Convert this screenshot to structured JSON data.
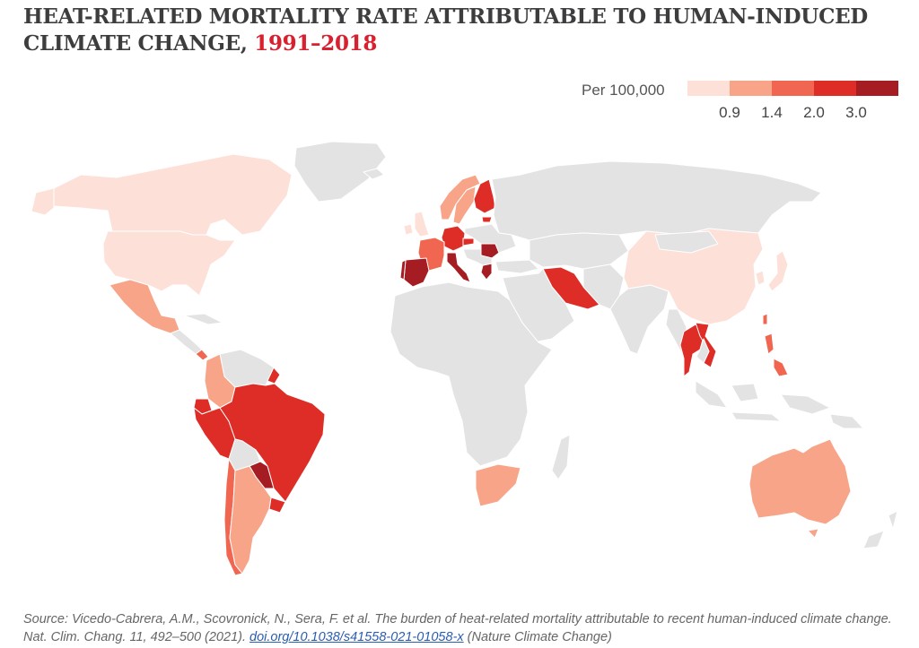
{
  "title": {
    "main": "HEAT-RELATED MORTALITY RATE ATTRIBUTABLE TO HUMAN-INDUCED CLIMATE CHANGE, ",
    "years": "1991–2018"
  },
  "legend": {
    "label": "Per 100,000",
    "colors": [
      "#fde0d7",
      "#f8a488",
      "#f06650",
      "#de2d26",
      "#a51c22"
    ],
    "ticks": [
      "0.9",
      "1.4",
      "2.0",
      "3.0"
    ]
  },
  "colors": {
    "no_data": "#e3e3e3",
    "title_accent": "#d9202f"
  },
  "chart_data": {
    "type": "choropleth",
    "title": "HEAT-RELATED MORTALITY RATE ATTRIBUTABLE TO HUMAN-INDUCED CLIMATE CHANGE, 1991–2018",
    "unit": "Per 100,000",
    "bins": [
      "<0.9",
      "0.9–1.4",
      "1.4–2.0",
      "2.0–3.0",
      ">3.0"
    ],
    "regions": [
      {
        "name": "Canada",
        "bin": 0
      },
      {
        "name": "United States",
        "bin": 0
      },
      {
        "name": "Mexico",
        "bin": 1
      },
      {
        "name": "Guatemala",
        "bin": 1
      },
      {
        "name": "Panama",
        "bin": 2
      },
      {
        "name": "Colombia",
        "bin": 1
      },
      {
        "name": "Ecuador",
        "bin": 3
      },
      {
        "name": "Peru",
        "bin": 3
      },
      {
        "name": "Brazil",
        "bin": 3
      },
      {
        "name": "Paraguay",
        "bin": 4
      },
      {
        "name": "Uruguay",
        "bin": 3
      },
      {
        "name": "Chile",
        "bin": 2
      },
      {
        "name": "Argentina",
        "bin": 1
      },
      {
        "name": "French Guiana",
        "bin": 3
      },
      {
        "name": "United Kingdom",
        "bin": 0
      },
      {
        "name": "Ireland",
        "bin": 0
      },
      {
        "name": "Norway",
        "bin": 1
      },
      {
        "name": "Sweden",
        "bin": 1
      },
      {
        "name": "Finland",
        "bin": 3
      },
      {
        "name": "Estonia",
        "bin": 3
      },
      {
        "name": "France",
        "bin": 2
      },
      {
        "name": "Germany",
        "bin": 3
      },
      {
        "name": "Czech Republic",
        "bin": 3
      },
      {
        "name": "Switzerland",
        "bin": 2
      },
      {
        "name": "Spain",
        "bin": 4
      },
      {
        "name": "Portugal",
        "bin": 4
      },
      {
        "name": "Italy",
        "bin": 4
      },
      {
        "name": "Romania",
        "bin": 4
      },
      {
        "name": "Greece",
        "bin": 4
      },
      {
        "name": "Iran",
        "bin": 3
      },
      {
        "name": "China",
        "bin": 0
      },
      {
        "name": "Japan",
        "bin": 0
      },
      {
        "name": "South Korea",
        "bin": 0
      },
      {
        "name": "Taiwan",
        "bin": 2
      },
      {
        "name": "Thailand",
        "bin": 3
      },
      {
        "name": "Vietnam",
        "bin": 3
      },
      {
        "name": "Philippines",
        "bin": 2
      },
      {
        "name": "South Africa",
        "bin": 1
      },
      {
        "name": "Australia",
        "bin": 1
      }
    ]
  },
  "source": {
    "text": "Source: Vicedo-Cabrera, A.M., Scovronick, N., Sera, F. et al. The burden of heat-related mortality attributable to recent human-induced climate change. Nat. Clim. Chang. 11, 492–500 (2021). ",
    "link": "doi.org/10.1038/s41558-021-01058-x",
    "suffix": " (Nature Climate Change)"
  }
}
